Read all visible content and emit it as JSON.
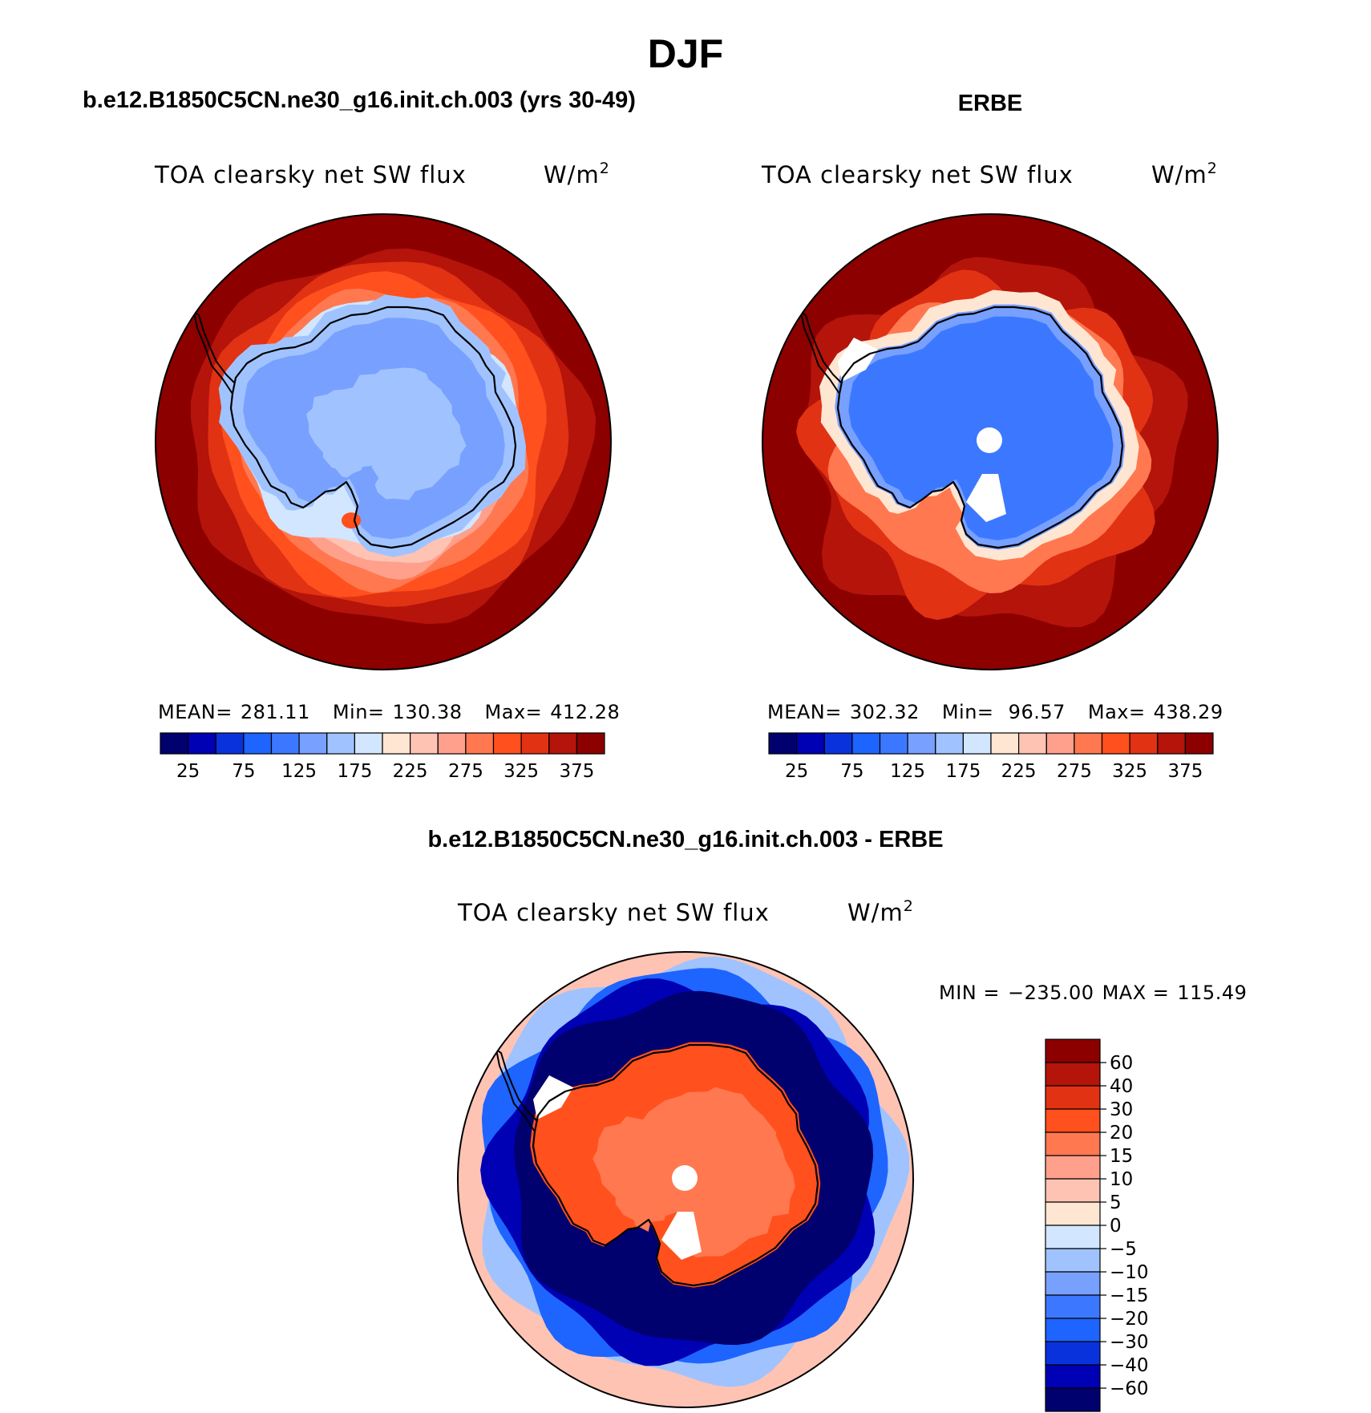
{
  "figure": {
    "title": "DJF"
  },
  "colors": {
    "abs_scale": [
      "#00006e",
      "#0000b4",
      "#0a32dc",
      "#1e64ff",
      "#3c78ff",
      "#78a0ff",
      "#a0c3ff",
      "#d2e6ff",
      "#ffe6d2",
      "#ffc3b4",
      "#ffa08c",
      "#ff7850",
      "#ff501e",
      "#e13214",
      "#b4140a",
      "#8c0000"
    ],
    "diff_scale": [
      "#8c0000",
      "#b4140a",
      "#e13214",
      "#ff501e",
      "#ff7850",
      "#ffa08c",
      "#ffc3b4",
      "#ffe6d2",
      "#d2e6ff",
      "#a0c3ff",
      "#78a0ff",
      "#3c78ff",
      "#1e64ff",
      "#0a32dc",
      "#0000b4",
      "#00006e"
    ],
    "land_white": "#ffffff",
    "coast": "#000000"
  },
  "chart_data": [
    {
      "type": "heatmap",
      "projection": "south polar stereographic",
      "title": "b.e12.B1850C5CN.ne30_g16.init.ch.003 (yrs 30-49)",
      "subtitle": "TOA clearsky net SW flux",
      "units": "W/m",
      "units_exp": "2",
      "stats": {
        "mean_label": "MEAN=",
        "mean": "281.11",
        "min_label": "Min=",
        "min": "130.38",
        "max_label": "Max=",
        "max": "412.28"
      },
      "colorbar": {
        "orientation": "horizontal",
        "levels": [
          25,
          50,
          75,
          100,
          125,
          150,
          175,
          200,
          225,
          250,
          275,
          300,
          325,
          350,
          375
        ],
        "tick_labels": [
          "25",
          "75",
          "125",
          "175",
          "225",
          "275",
          "325",
          "375"
        ]
      },
      "zones": [
        {
          "region": "outer ocean",
          "value": 390
        },
        {
          "region": "ring 1",
          "value": 360
        },
        {
          "region": "ring 2",
          "value": 335
        },
        {
          "region": "ring 3",
          "value": 310
        },
        {
          "region": "ring 4",
          "value": 285
        },
        {
          "region": "ring 5",
          "value": 260
        },
        {
          "region": "ring 6",
          "value": 235
        },
        {
          "region": "sea ice",
          "value": 185
        },
        {
          "region": "coastal ice",
          "value": 160
        },
        {
          "region": "ice sheet",
          "value": 140
        }
      ]
    },
    {
      "type": "heatmap",
      "projection": "south polar stereographic",
      "title": "ERBE",
      "subtitle": "TOA clearsky net SW flux",
      "units": "W/m",
      "units_exp": "2",
      "stats": {
        "mean_label": "MEAN=",
        "mean": "302.32",
        "min_label": "Min=",
        "min": " 96.57",
        "max_label": "Max=",
        "max": "438.29"
      },
      "colorbar": {
        "orientation": "horizontal",
        "levels": [
          25,
          50,
          75,
          100,
          125,
          150,
          175,
          200,
          225,
          250,
          275,
          300,
          325,
          350,
          375
        ],
        "tick_labels": [
          "25",
          "75",
          "125",
          "175",
          "225",
          "275",
          "325",
          "375"
        ]
      },
      "zones": [
        {
          "region": "outer ocean",
          "value": 390
        },
        {
          "region": "ring 1",
          "value": 360
        },
        {
          "region": "ring 2",
          "value": 330
        },
        {
          "region": "ring 3",
          "value": 290
        },
        {
          "region": "coastal ice",
          "value": 140
        },
        {
          "region": "ice sheet",
          "value": 115
        }
      ]
    },
    {
      "type": "heatmap",
      "projection": "south polar stereographic",
      "title": "b.e12.B1850C5CN.ne30_g16.init.ch.003 - ERBE",
      "subtitle": "TOA clearsky net SW flux",
      "units": "W/m",
      "units_exp": "2",
      "stats": {
        "min_label": "MIN =",
        "min": "−235.00",
        "max_label": "MAX =",
        "max": "115.49"
      },
      "colorbar": {
        "orientation": "vertical",
        "levels": [
          60,
          40,
          30,
          20,
          15,
          10,
          5,
          0,
          -5,
          -10,
          -15,
          -20,
          -30,
          -40,
          -60
        ],
        "tick_labels": [
          "60",
          "40",
          "30",
          "20",
          "15",
          "10",
          "5",
          "0",
          "−5",
          "−10",
          "−15",
          "−20",
          "−30",
          "−40",
          "−60"
        ]
      },
      "zones": [
        {
          "region": "outer ocean",
          "value": 7
        },
        {
          "region": "ring a",
          "value": -8
        },
        {
          "region": "ring b",
          "value": -25
        },
        {
          "region": "ring c",
          "value": -45
        },
        {
          "region": "sea ice belt",
          "value": -70
        },
        {
          "region": "coastal ice",
          "value": 25
        },
        {
          "region": "ice sheet",
          "value": 17
        }
      ]
    }
  ]
}
